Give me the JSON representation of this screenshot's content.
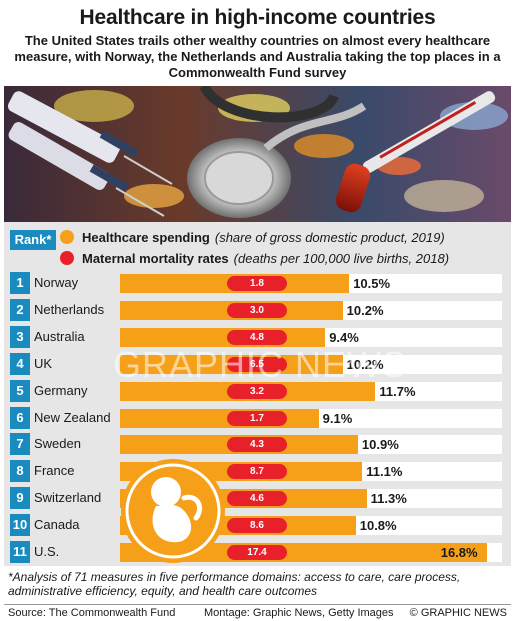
{
  "header": {
    "title": "Healthcare in high-income countries",
    "subtitle": "The United States trails other wealthy countries on almost every healthcare measure, with Norway, the Netherlands and Australia taking the top places in a Commonwealth Fund survey"
  },
  "legend": {
    "rank_label": "Rank*",
    "spending_title": "Healthcare spending",
    "spending_note": "(share of gross domestic product, 2019)",
    "mortality_title": "Maternal mortality rates",
    "mortality_note": "(deaths per 100,000 live births, 2018)"
  },
  "colors": {
    "spending": "#f6a01a",
    "mortality": "#e8202a",
    "rank": "#1a8bbf"
  },
  "chart_data": {
    "type": "bar",
    "orientation": "horizontal",
    "categories": [
      "Norway",
      "Netherlands",
      "Australia",
      "UK",
      "Germany",
      "New Zealand",
      "Sweden",
      "France",
      "Switzerland",
      "Canada",
      "U.S."
    ],
    "ranks": [
      "1",
      "2",
      "3",
      "4",
      "5",
      "6",
      "7",
      "8",
      "9",
      "10",
      "11"
    ],
    "series": [
      {
        "name": "Healthcare spending",
        "values": [
          10.5,
          10.2,
          9.4,
          10.2,
          11.7,
          9.1,
          10.9,
          11.1,
          11.3,
          10.8,
          16.8
        ],
        "labels": [
          "10.5%",
          "10.2%",
          "9.4%",
          "10.2%",
          "11.7%",
          "9.1%",
          "10.9%",
          "11.1%",
          "11.3%",
          "10.8%",
          "16.8%"
        ]
      },
      {
        "name": "Maternal mortality rates",
        "values": [
          1.8,
          3.0,
          4.8,
          6.5,
          3.2,
          1.7,
          4.3,
          8.7,
          4.6,
          8.6,
          17.4
        ],
        "labels": [
          "1.8",
          "3.0",
          "4.8",
          "6.5",
          "3.2",
          "1.7",
          "4.3",
          "8.7",
          "4.6",
          "8.6",
          "17.4"
        ]
      }
    ],
    "xlim": [
      0,
      17.5
    ]
  },
  "watermark": "GRAPHIC NEWS",
  "footnote": "*Analysis of 71 measures in five performance domains: access to care, care process, administrative efficiency, equity, and health care outcomes",
  "sources": {
    "source": "Source: The Commonwealth Fund",
    "montage": "Montage: Graphic News, Getty Images",
    "copyright": "© GRAPHIC NEWS"
  }
}
